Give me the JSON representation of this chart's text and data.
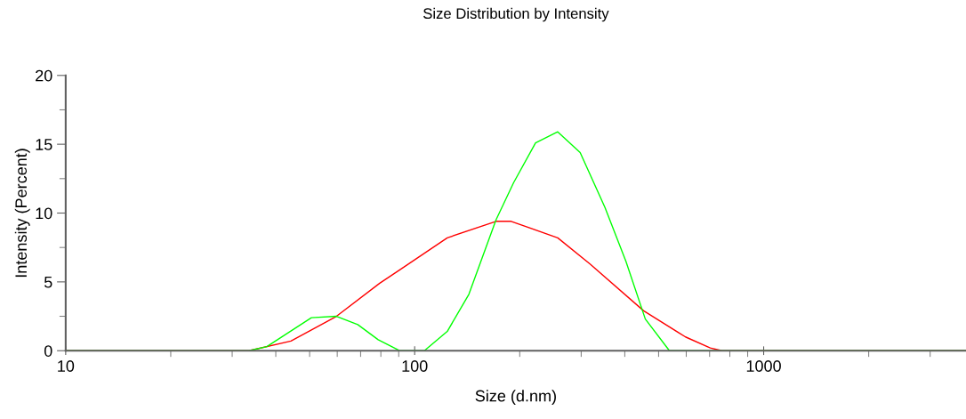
{
  "chart_data": {
    "type": "line",
    "title": "Size Distribution by Intensity",
    "xlabel": "Size (d.nm)",
    "ylabel": "Intensity (Percent)",
    "log": "x",
    "xlim": [
      10,
      3800
    ],
    "ylim": [
      0,
      20
    ],
    "xticks": [
      10,
      {
        "value": 20,
        "label": null
      },
      {
        "value": 30,
        "label": null
      },
      {
        "value": 40,
        "label": null
      },
      {
        "value": 50,
        "label": null
      },
      {
        "value": 60,
        "label": null
      },
      {
        "value": 70,
        "label": null
      },
      {
        "value": 80,
        "label": null
      },
      {
        "value": 90,
        "label": null
      },
      100,
      {
        "value": 200,
        "label": null
      },
      {
        "value": 300,
        "label": null
      },
      {
        "value": 400,
        "label": null
      },
      {
        "value": 500,
        "label": null
      },
      {
        "value": 600,
        "label": null
      },
      {
        "value": 700,
        "label": null
      },
      {
        "value": 800,
        "label": null
      },
      {
        "value": 900,
        "label": null
      },
      1000,
      {
        "value": 2000,
        "label": null
      },
      {
        "value": 3000,
        "label": null
      }
    ],
    "yticks": [
      0,
      {
        "value": 2.5,
        "label": null
      },
      5,
      {
        "value": 7.5,
        "label": null
      },
      10,
      {
        "value": 12.5,
        "label": null
      },
      15,
      {
        "value": 17.5,
        "label": null
      },
      20
    ],
    "marker": "none",
    "line_style": "solid",
    "series": [
      {
        "color": "#ff0000",
        "x": [
          10,
          33.5,
          44.2,
          59.7,
          79.4,
          91,
          124,
          171,
          189,
          257,
          318,
          453,
          597,
          703,
          760,
          3800
        ],
        "values": [
          0,
          0,
          0.7,
          2.5,
          4.9,
          5.9,
          8.2,
          9.4,
          9.4,
          8.2,
          6.3,
          2.9,
          1.0,
          0.2,
          0,
          0
        ]
      },
      {
        "color": "#00ff00",
        "x": [
          10,
          33.5,
          37.7,
          50.6,
          59.7,
          68.7,
          78.6,
          90.5,
          106.6,
          124,
          143,
          171,
          192,
          222,
          257,
          298,
          351,
          403,
          458,
          537,
          3800
        ],
        "values": [
          0,
          0,
          0.3,
          2.4,
          2.5,
          1.9,
          0.8,
          0,
          0,
          1.4,
          4.1,
          9.5,
          12.2,
          15.1,
          15.9,
          14.4,
          10.4,
          6.5,
          2.3,
          0,
          0
        ]
      }
    ]
  }
}
